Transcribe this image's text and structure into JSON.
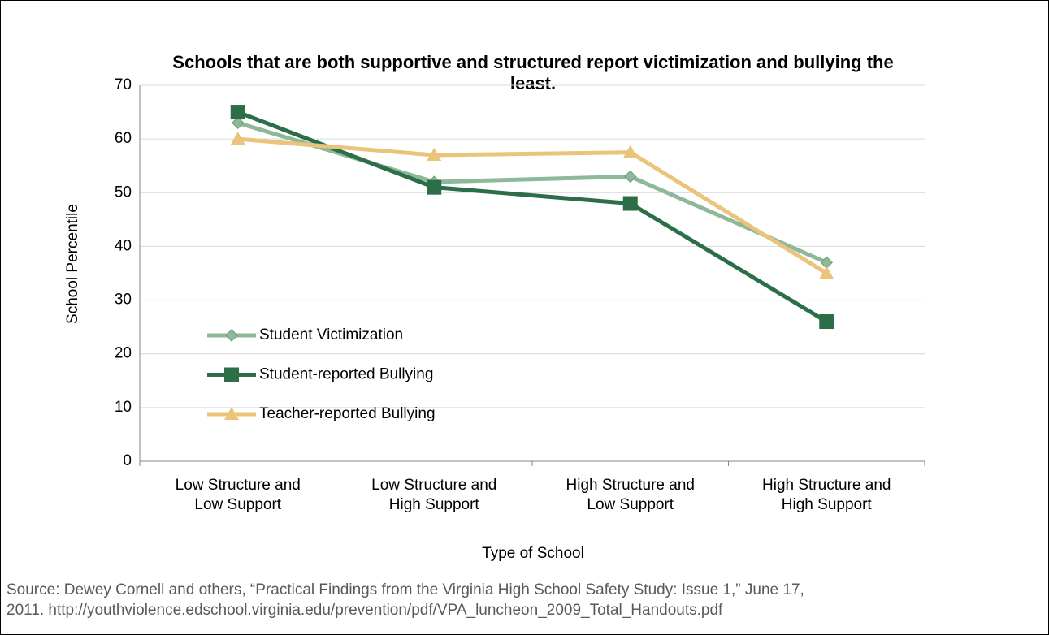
{
  "chart_data": {
    "type": "line",
    "title": "Schools that are both supportive and structured report victimization and bullying the least.",
    "x_label": "Type of School",
    "y_label": "School Percentile",
    "categories": [
      "Low Structure and Low Support",
      "Low Structure and High Support",
      "High Structure and Low Support",
      "High Structure and High Support"
    ],
    "series": [
      {
        "name": "Student Victimization",
        "color": "#8db899",
        "marker": "diamond",
        "values": [
          63,
          52,
          53,
          37
        ]
      },
      {
        "name": "Student-reported Bullying",
        "color": "#2b6e47",
        "marker": "square",
        "values": [
          65,
          51,
          48,
          26
        ]
      },
      {
        "name": "Teacher-reported Bullying",
        "color": "#e9c47a",
        "marker": "triangle",
        "values": [
          60,
          57,
          57.5,
          35
        ]
      }
    ],
    "ylim": [
      0,
      70
    ],
    "yticks": [
      0,
      10,
      20,
      30,
      40,
      50,
      60,
      70
    ],
    "grid": true,
    "legend": "left",
    "source": [
      "Source: Dewey Cornell and others, “Practical Findings from the Virginia High School Safety Study: Issue 1,” June 17,",
      "2011. http://youthviolence.edschool.virginia.edu/prevention/pdf/VPA_luncheon_2009_Total_Handouts.pdf"
    ]
  }
}
